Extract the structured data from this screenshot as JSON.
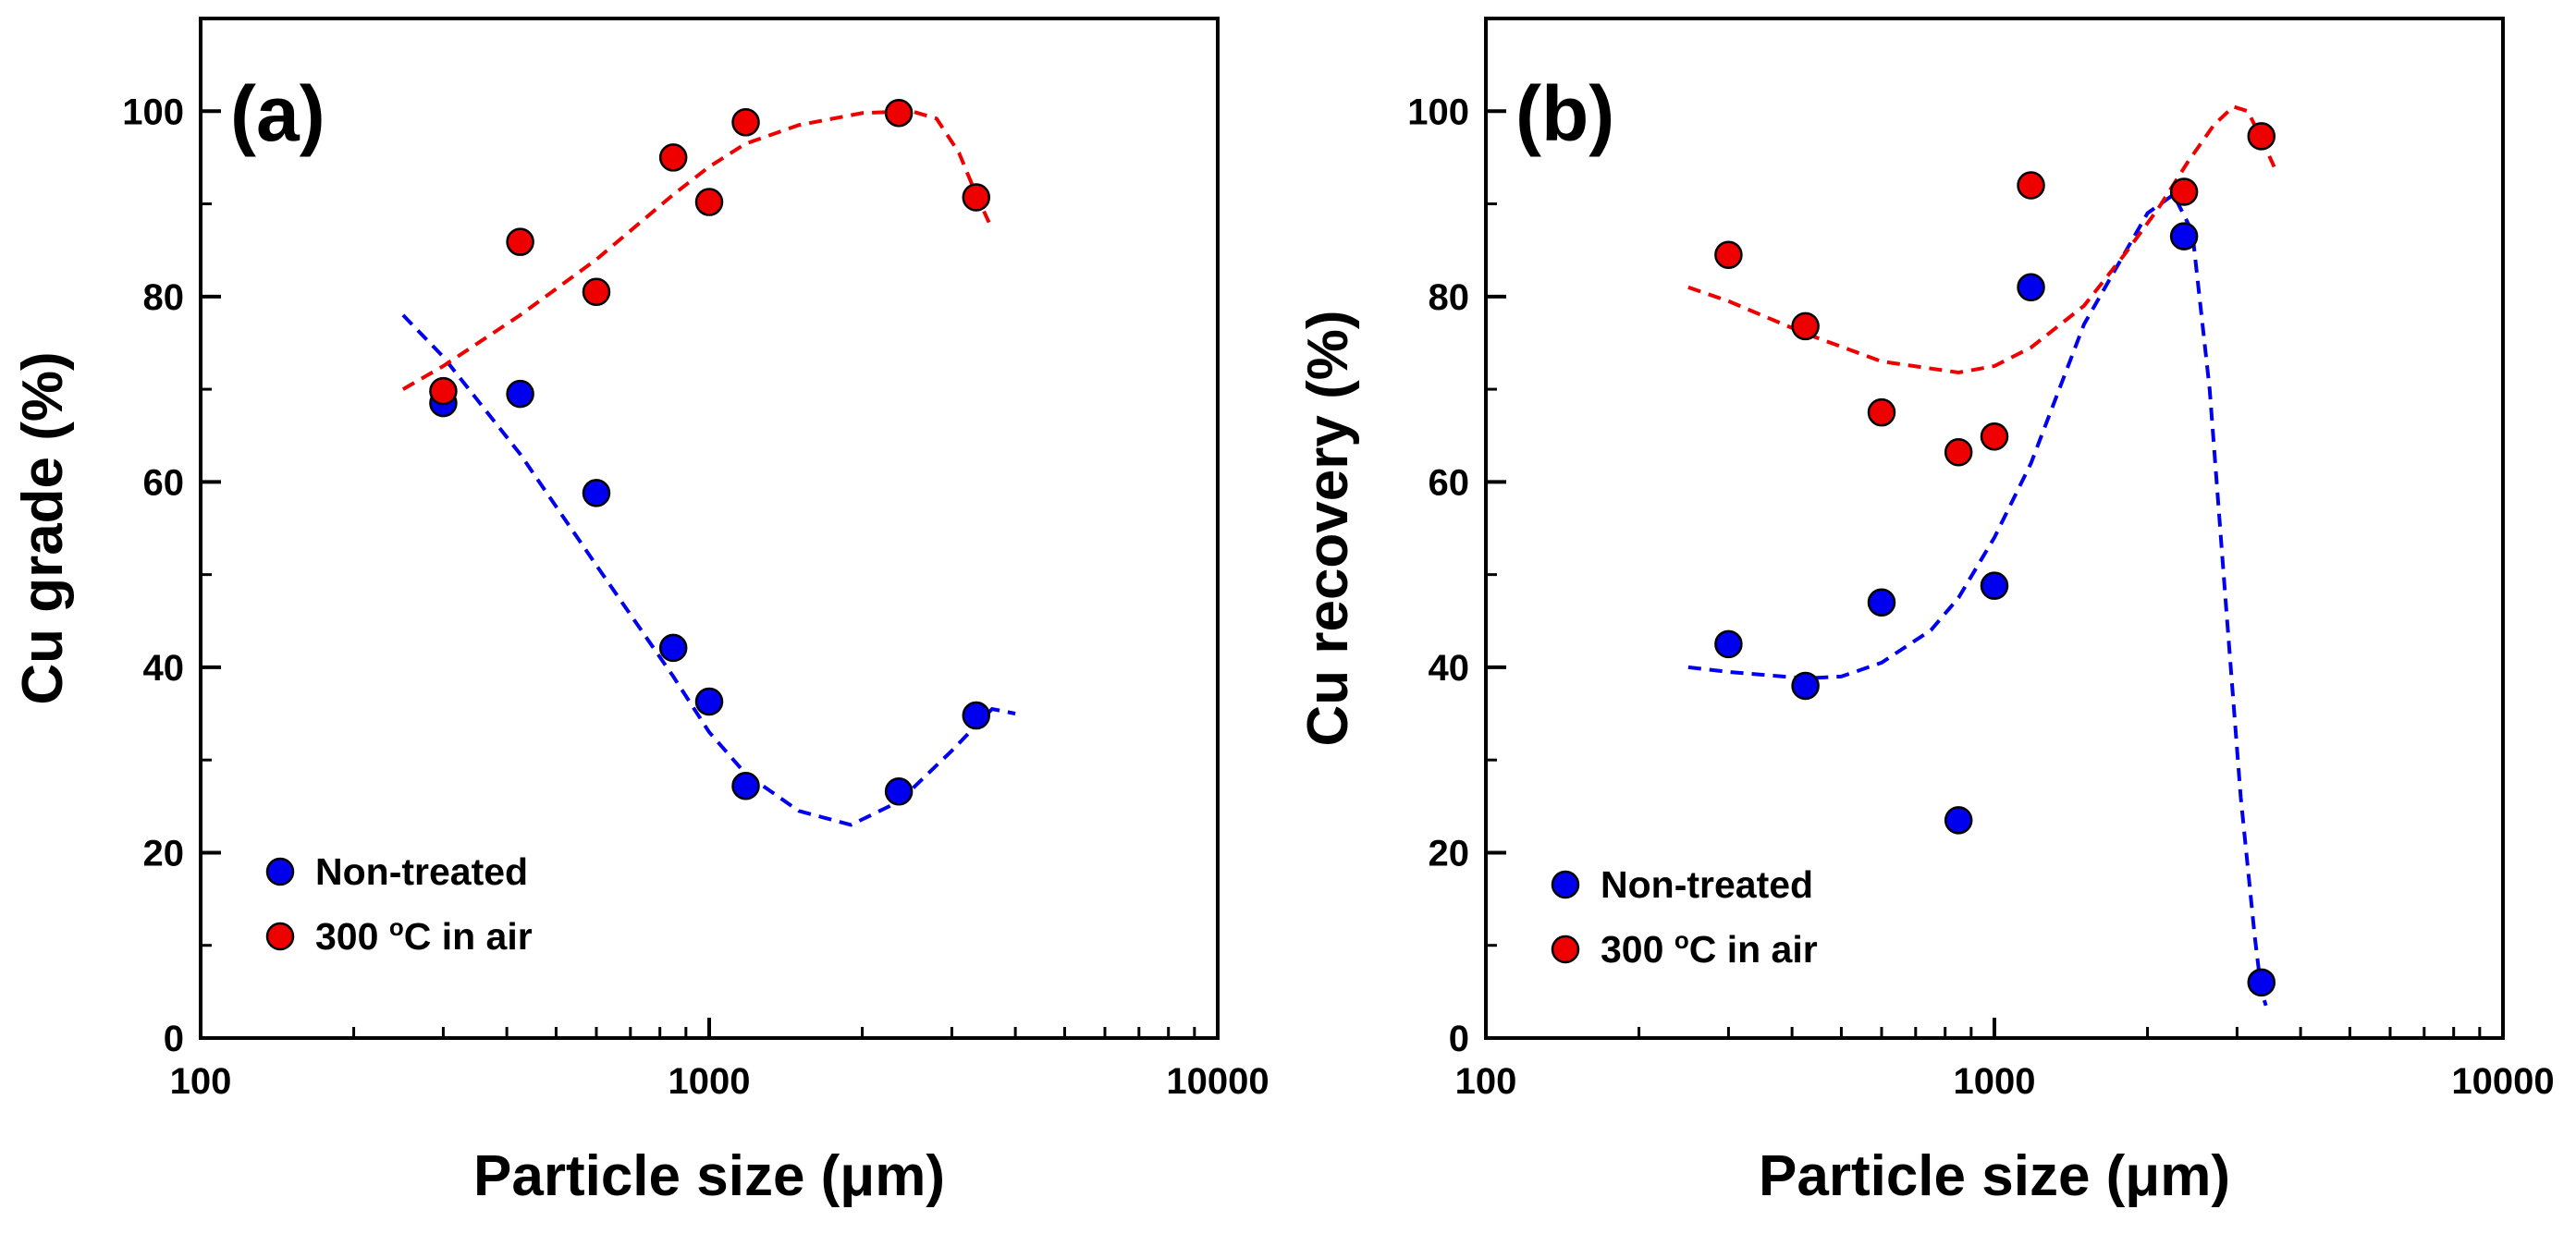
{
  "colors": {
    "non_treated": "#0000ee",
    "treated": "#ee0000",
    "axis": "#000000"
  },
  "chart_data": [
    {
      "type": "scatter",
      "panel_label": "(a)",
      "xlabel": "Particle size (μm)",
      "ylabel": "Cu grade (%)",
      "xscale": "log",
      "xlim": [
        100,
        10000
      ],
      "ylim": [
        0,
        110
      ],
      "x_ticks": [
        100,
        1000,
        10000
      ],
      "x_tick_labels": [
        "100",
        "1000",
        "10000"
      ],
      "y_ticks": [
        0,
        20,
        40,
        60,
        80,
        100
      ],
      "y_tick_labels": [
        "0",
        "20",
        "40",
        "60",
        "80",
        "100"
      ],
      "legend_position": "bottom-left",
      "series": [
        {
          "name": "Non-treated",
          "key": "non_treated",
          "x": [
            300,
            425,
            600,
            850,
            1000,
            1180,
            2360,
            3350
          ],
          "y": [
            68.5,
            69.5,
            58.8,
            42.1,
            36.3,
            27.2,
            26.6,
            34.8
          ],
          "trend_x": [
            250,
            300,
            425,
            600,
            850,
            1000,
            1180,
            1500,
            1900,
            2360,
            3000,
            3600,
            4000
          ],
          "trend_y": [
            78.0,
            73.5,
            63.0,
            51.0,
            39.0,
            33.0,
            28.5,
            24.5,
            23.0,
            25.5,
            31.0,
            35.5,
            35.0
          ]
        },
        {
          "name": "300 °C in air",
          "legend_superscript": "o",
          "legend_prefix": "300 ",
          "legend_suffix": "C in air",
          "key": "treated",
          "x": [
            300,
            425,
            600,
            850,
            1000,
            1180,
            2360,
            3350
          ],
          "y": [
            69.8,
            85.9,
            80.5,
            95.0,
            90.2,
            98.8,
            99.8,
            90.7
          ],
          "trend_x": [
            250,
            300,
            425,
            600,
            850,
            1000,
            1180,
            1500,
            2000,
            2500,
            2800,
            3100,
            3350,
            3550
          ],
          "trend_y": [
            70.0,
            72.5,
            78.0,
            84.0,
            91.0,
            94.0,
            96.5,
            98.5,
            99.8,
            100.0,
            99.2,
            95.5,
            91.0,
            88.0
          ]
        }
      ]
    },
    {
      "type": "scatter",
      "panel_label": "(b)",
      "xlabel": "Particle size (μm)",
      "ylabel": "Cu recovery (%)",
      "xscale": "log",
      "xlim": [
        100,
        10000
      ],
      "ylim": [
        0,
        110
      ],
      "x_ticks": [
        100,
        1000,
        10000
      ],
      "x_tick_labels": [
        "100",
        "1000",
        "10000"
      ],
      "y_ticks": [
        0,
        20,
        40,
        60,
        80,
        100
      ],
      "y_tick_labels": [
        "0",
        "20",
        "40",
        "60",
        "80",
        "100"
      ],
      "legend_position": "bottom-left",
      "series": [
        {
          "name": "Non-treated",
          "key": "non_treated",
          "x": [
            300,
            425,
            600,
            850,
            1000,
            1180,
            2360,
            3350
          ],
          "y": [
            42.5,
            38.0,
            47.0,
            23.5,
            48.8,
            81.0,
            86.5,
            6.0
          ],
          "trend_x": [
            250,
            300,
            425,
            500,
            600,
            750,
            850,
            1000,
            1180,
            1500,
            2000,
            2250,
            2450,
            2650,
            2850,
            3050,
            3250,
            3350,
            3420
          ],
          "trend_y": [
            40.0,
            39.5,
            38.8,
            39.0,
            40.5,
            44.0,
            47.5,
            54.0,
            62.0,
            77.0,
            89.0,
            91.0,
            87.0,
            70.0,
            47.0,
            26.0,
            11.0,
            5.0,
            3.5
          ]
        },
        {
          "name": "300 °C in air",
          "legend_superscript": "o",
          "legend_prefix": "300 ",
          "legend_suffix": "C in air",
          "key": "treated",
          "x": [
            300,
            425,
            600,
            850,
            1000,
            1180,
            2360,
            3350
          ],
          "y": [
            84.5,
            76.8,
            67.5,
            63.2,
            64.9,
            92.0,
            91.3,
            97.3
          ],
          "trend_x": [
            250,
            300,
            425,
            600,
            850,
            1000,
            1180,
            1500,
            1800,
            2100,
            2400,
            2700,
            2950,
            3150,
            3350,
            3550
          ],
          "trend_y": [
            81.0,
            79.5,
            76.0,
            73.0,
            71.8,
            72.5,
            74.5,
            79.0,
            84.5,
            89.5,
            94.5,
            98.5,
            100.5,
            100.0,
            97.0,
            94.0
          ]
        }
      ]
    }
  ]
}
